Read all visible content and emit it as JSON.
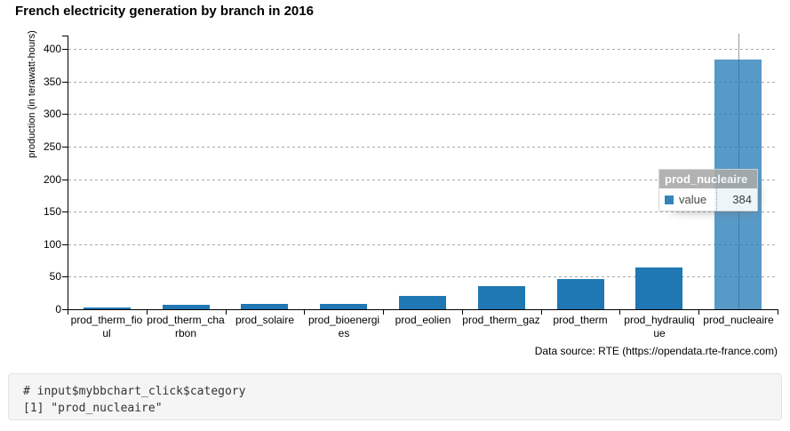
{
  "chart": {
    "title": "French electricity generation by branch in 2016",
    "caption": "Data source: RTE (https://opendata.rte-france.com)",
    "ylabel": "production (in terawatt-hours)"
  },
  "chart_data": {
    "type": "bar",
    "title": "French electricity generation by branch in 2016",
    "xlabel": "",
    "ylabel": "production (in terawatt-hours)",
    "categories": [
      "prod_therm_fioul",
      "prod_therm_charbon",
      "prod_solaire",
      "prod_bioenergies",
      "prod_eolien",
      "prod_therm_gaz",
      "prod_therm",
      "prod_hydraulique",
      "prod_nucleaire"
    ],
    "categories_wrapped": [
      [
        "prod_therm_fio",
        "ul"
      ],
      [
        "prod_therm_cha",
        "rbon"
      ],
      [
        "prod_solaire"
      ],
      [
        "prod_bioenergi",
        "es"
      ],
      [
        "prod_eolien"
      ],
      [
        "prod_therm_gaz"
      ],
      [
        "prod_therm"
      ],
      [
        "prod_hydrauliq",
        "ue"
      ],
      [
        "prod_nucleaire"
      ]
    ],
    "series": [
      {
        "name": "value",
        "values": [
          3.3,
          7.3,
          8.3,
          8.5,
          20.7,
          35.4,
          45.9,
          63.9,
          384
        ]
      }
    ],
    "yticks": [
      0,
      50,
      100,
      150,
      200,
      250,
      300,
      350,
      400
    ],
    "ylim": [
      0,
      420
    ],
    "grid": "dashed-horizontal",
    "grid_color": "#aaaaaa",
    "legend_position": "none",
    "axis_color": "#000000",
    "bar_color": "#1f77b4",
    "highlighted_category": "prod_nucleaire",
    "highlighted_bar_opacity": 0.75,
    "focus_line_color": "#999999"
  },
  "tooltip": {
    "title": "prod_nucleaire",
    "series_label": "value",
    "value": "384",
    "swatch_color": "#1f77b4"
  },
  "console": {
    "line1": "# input$mybbchart_click$category",
    "line2": "[1] \"prod_nucleaire\""
  }
}
